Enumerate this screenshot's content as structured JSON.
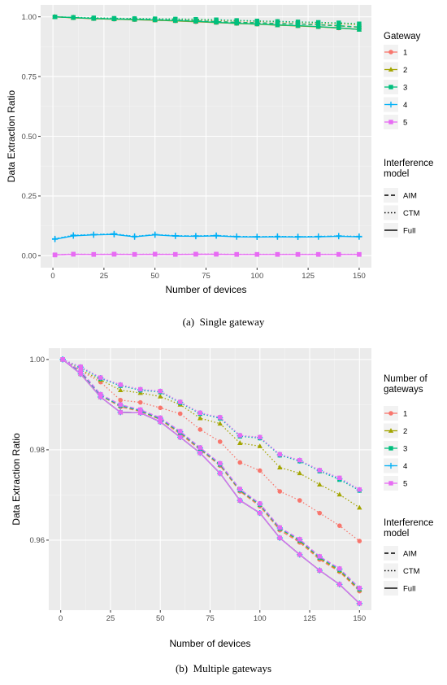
{
  "chart_data": [
    {
      "type": "line",
      "caption": "(a)  Single gateway",
      "xlabel": "Number of devices",
      "ylabel": "Data Extraction Ratio",
      "xlim": [
        -6,
        156
      ],
      "ylim": [
        -0.05,
        1.05
      ],
      "x_ticks": [
        "0",
        "25",
        "50",
        "75",
        "100",
        "125",
        "150"
      ],
      "y_ticks": [
        "0.00",
        "0.25",
        "0.50",
        "0.75",
        "1.00"
      ],
      "grid": true,
      "legend_position": "right",
      "color_legend_title": "Gateway",
      "linetype_legend_title": "Interference\nmodel",
      "x": [
        1,
        10,
        20,
        30,
        40,
        50,
        60,
        70,
        80,
        90,
        100,
        110,
        120,
        130,
        140,
        150
      ],
      "series": [
        {
          "name": "1",
          "color": "#F8766D",
          "marker": "circle",
          "AIM": [
            1.0,
            0.996,
            0.993,
            0.991,
            0.99,
            0.988,
            0.985,
            0.982,
            0.98,
            0.977,
            0.975,
            0.972,
            0.97,
            0.966,
            0.962,
            0.956
          ],
          "CTM": [
            1.0,
            0.997,
            0.994,
            0.993,
            0.992,
            0.991,
            0.989,
            0.987,
            0.985,
            0.983,
            0.981,
            0.979,
            0.976,
            0.974,
            0.971,
            0.968
          ],
          "Full": [
            1.0,
            0.996,
            0.992,
            0.99,
            0.988,
            0.986,
            0.983,
            0.979,
            0.976,
            0.972,
            0.969,
            0.966,
            0.962,
            0.958,
            0.953,
            0.948
          ]
        },
        {
          "name": "2",
          "color": "#A3A500",
          "marker": "triangle",
          "AIM": [
            1.0,
            0.997,
            0.993,
            0.991,
            0.99,
            0.988,
            0.986,
            0.983,
            0.98,
            0.977,
            0.975,
            0.972,
            0.97,
            0.967,
            0.962,
            0.957
          ],
          "CTM": [
            1.0,
            0.998,
            0.995,
            0.993,
            0.992,
            0.991,
            0.99,
            0.988,
            0.986,
            0.984,
            0.982,
            0.98,
            0.978,
            0.975,
            0.972,
            0.967
          ],
          "Full": [
            1.0,
            0.996,
            0.992,
            0.99,
            0.988,
            0.986,
            0.983,
            0.98,
            0.976,
            0.972,
            0.969,
            0.965,
            0.962,
            0.958,
            0.953,
            0.947
          ]
        },
        {
          "name": "3",
          "color": "#00BF7D",
          "marker": "square",
          "AIM": [
            1.0,
            0.997,
            0.993,
            0.991,
            0.99,
            0.988,
            0.986,
            0.983,
            0.98,
            0.977,
            0.975,
            0.972,
            0.97,
            0.967,
            0.963,
            0.957
          ],
          "CTM": [
            1.0,
            0.998,
            0.996,
            0.994,
            0.993,
            0.992,
            0.991,
            0.99,
            0.988,
            0.985,
            0.983,
            0.981,
            0.979,
            0.977,
            0.975,
            0.971
          ],
          "Full": [
            1.0,
            0.997,
            0.993,
            0.991,
            0.989,
            0.987,
            0.984,
            0.981,
            0.977,
            0.973,
            0.97,
            0.966,
            0.963,
            0.959,
            0.954,
            0.947
          ]
        },
        {
          "name": "4",
          "color": "#00B0F6",
          "marker": "plus",
          "AIM": [
            0.07,
            0.084,
            0.088,
            0.09,
            0.08,
            0.088,
            0.083,
            0.082,
            0.084,
            0.08,
            0.079,
            0.08,
            0.079,
            0.08,
            0.082,
            0.08
          ],
          "CTM": [
            0.071,
            0.086,
            0.089,
            0.092,
            0.081,
            0.089,
            0.084,
            0.083,
            0.085,
            0.081,
            0.08,
            0.081,
            0.08,
            0.081,
            0.083,
            0.081
          ],
          "Full": [
            0.069,
            0.083,
            0.087,
            0.089,
            0.079,
            0.087,
            0.082,
            0.081,
            0.083,
            0.079,
            0.078,
            0.079,
            0.078,
            0.079,
            0.081,
            0.079
          ]
        },
        {
          "name": "5",
          "color": "#E76BF3",
          "marker": "square",
          "AIM": [
            0.003,
            0.006,
            0.005,
            0.006,
            0.005,
            0.006,
            0.005,
            0.006,
            0.006,
            0.005,
            0.005,
            0.005,
            0.005,
            0.005,
            0.005,
            0.005
          ],
          "CTM": [
            0.004,
            0.007,
            0.006,
            0.007,
            0.006,
            0.007,
            0.006,
            0.007,
            0.007,
            0.006,
            0.006,
            0.006,
            0.006,
            0.006,
            0.006,
            0.006
          ],
          "Full": [
            0.003,
            0.006,
            0.005,
            0.006,
            0.005,
            0.006,
            0.005,
            0.006,
            0.006,
            0.005,
            0.005,
            0.005,
            0.005,
            0.005,
            0.005,
            0.005
          ]
        }
      ],
      "color_legend": [
        {
          "label": "1",
          "color": "#F8766D",
          "marker": "circle"
        },
        {
          "label": "2",
          "color": "#A3A500",
          "marker": "triangle"
        },
        {
          "label": "3",
          "color": "#00BF7D",
          "marker": "square"
        },
        {
          "label": "4",
          "color": "#00B0F6",
          "marker": "plus"
        },
        {
          "label": "5",
          "color": "#E76BF3",
          "marker": "square"
        }
      ],
      "linetype_legend": [
        {
          "label": "AIM",
          "dash": "dashed"
        },
        {
          "label": "CTM",
          "dash": "dotted"
        },
        {
          "label": "Full",
          "dash": "solid"
        }
      ]
    },
    {
      "type": "line",
      "caption": "(b)  Multiple gateways",
      "xlabel": "Number of devices",
      "ylabel": "Data Extraction Ratio",
      "xlim": [
        -6,
        156
      ],
      "ylim": [
        0.9445,
        1.0025
      ],
      "x_ticks": [
        "0",
        "25",
        "50",
        "75",
        "100",
        "125",
        "150"
      ],
      "y_ticks": [
        "0.96",
        "0.98",
        "1.00"
      ],
      "grid": true,
      "legend_position": "right",
      "color_legend_title": "Number of\ngateways",
      "linetype_legend_title": "Interference\nmodel",
      "x": [
        1,
        10,
        20,
        30,
        40,
        50,
        60,
        70,
        80,
        90,
        100,
        110,
        120,
        130,
        140,
        150
      ],
      "series": [
        {
          "name": "1",
          "color": "#F8766D",
          "marker": "circle",
          "AIM": [
            1.0,
            0.997,
            0.992,
            0.9895,
            0.9885,
            0.9867,
            0.9835,
            0.98,
            0.9765,
            0.9708,
            0.9675,
            0.9622,
            0.9595,
            0.9557,
            0.953,
            0.9487
          ],
          "CTM": [
            1.0,
            0.9975,
            0.995,
            0.991,
            0.9905,
            0.9893,
            0.988,
            0.9845,
            0.9818,
            0.9772,
            0.9754,
            0.9708,
            0.9688,
            0.966,
            0.9632,
            0.9598
          ],
          "Full": [
            1.0,
            0.9968,
            0.9917,
            0.9883,
            0.9882,
            0.9862,
            0.9828,
            0.9793,
            0.9748,
            0.9688,
            0.966,
            0.9605,
            0.9568,
            0.9533,
            0.9502,
            0.946
          ]
        },
        {
          "name": "2",
          "color": "#A3A500",
          "marker": "triangle",
          "AIM": [
            1.0,
            0.9972,
            0.992,
            0.9898,
            0.9886,
            0.9868,
            0.9838,
            0.9802,
            0.9767,
            0.971,
            0.9678,
            0.9625,
            0.9598,
            0.956,
            0.9532,
            0.949
          ],
          "CTM": [
            1.0,
            0.9977,
            0.9955,
            0.9932,
            0.9926,
            0.9918,
            0.99,
            0.987,
            0.9858,
            0.9815,
            0.9808,
            0.9761,
            0.9748,
            0.9723,
            0.9701,
            0.9672
          ],
          "Full": [
            1.0,
            0.9968,
            0.9917,
            0.9883,
            0.9882,
            0.9862,
            0.9828,
            0.9793,
            0.9748,
            0.9688,
            0.966,
            0.9605,
            0.9568,
            0.9533,
            0.9502,
            0.946
          ]
        },
        {
          "name": "3",
          "color": "#00BF7D",
          "marker": "square",
          "AIM": [
            1.0,
            0.9973,
            0.9921,
            0.9898,
            0.9887,
            0.9869,
            0.9839,
            0.9803,
            0.9768,
            0.9711,
            0.9679,
            0.9626,
            0.96,
            0.9562,
            0.9535,
            0.9492
          ],
          "CTM": [
            1.0,
            0.9982,
            0.9958,
            0.9942,
            0.9932,
            0.9928,
            0.9904,
            0.988,
            0.987,
            0.983,
            0.9826,
            0.9788,
            0.9775,
            0.9753,
            0.9734,
            0.971
          ],
          "Full": [
            1.0,
            0.9968,
            0.9917,
            0.9883,
            0.9882,
            0.9862,
            0.9828,
            0.9793,
            0.9748,
            0.9688,
            0.966,
            0.9605,
            0.9568,
            0.9533,
            0.9502,
            0.946
          ]
        },
        {
          "name": "4",
          "color": "#00B0F6",
          "marker": "plus",
          "AIM": [
            1.0,
            0.9974,
            0.9922,
            0.9899,
            0.9888,
            0.987,
            0.984,
            0.9804,
            0.9769,
            0.9712,
            0.968,
            0.9627,
            0.9601,
            0.9563,
            0.9536,
            0.9493
          ],
          "CTM": [
            1.0,
            0.9983,
            0.9959,
            0.9943,
            0.9933,
            0.9929,
            0.9905,
            0.9881,
            0.9871,
            0.9831,
            0.9827,
            0.9789,
            0.9776,
            0.9754,
            0.9736,
            0.9711
          ],
          "Full": [
            1.0,
            0.9968,
            0.9917,
            0.9883,
            0.9882,
            0.9862,
            0.9828,
            0.9793,
            0.9748,
            0.9688,
            0.966,
            0.9605,
            0.9568,
            0.9533,
            0.9502,
            0.946
          ]
        },
        {
          "name": "5",
          "color": "#E76BF3",
          "marker": "square",
          "AIM": [
            1.0,
            0.9975,
            0.9923,
            0.99,
            0.9889,
            0.9871,
            0.9841,
            0.9805,
            0.977,
            0.9713,
            0.9681,
            0.9628,
            0.9602,
            0.9564,
            0.9537,
            0.9494
          ],
          "CTM": [
            1.0,
            0.9984,
            0.996,
            0.9944,
            0.9934,
            0.993,
            0.9906,
            0.9882,
            0.9872,
            0.9832,
            0.9828,
            0.979,
            0.9777,
            0.9755,
            0.9738,
            0.9712
          ],
          "Full": [
            1.0,
            0.9968,
            0.9917,
            0.9883,
            0.9882,
            0.9862,
            0.9828,
            0.9793,
            0.9748,
            0.9688,
            0.966,
            0.9605,
            0.9568,
            0.9533,
            0.9502,
            0.946
          ]
        }
      ],
      "color_legend": [
        {
          "label": "1",
          "color": "#F8766D",
          "marker": "circle"
        },
        {
          "label": "2",
          "color": "#A3A500",
          "marker": "triangle"
        },
        {
          "label": "3",
          "color": "#00BF7D",
          "marker": "square"
        },
        {
          "label": "4",
          "color": "#00B0F6",
          "marker": "plus"
        },
        {
          "label": "5",
          "color": "#E76BF3",
          "marker": "square"
        }
      ],
      "linetype_legend": [
        {
          "label": "AIM",
          "dash": "dashed"
        },
        {
          "label": "CTM",
          "dash": "dotted"
        },
        {
          "label": "Full",
          "dash": "solid"
        }
      ]
    }
  ]
}
